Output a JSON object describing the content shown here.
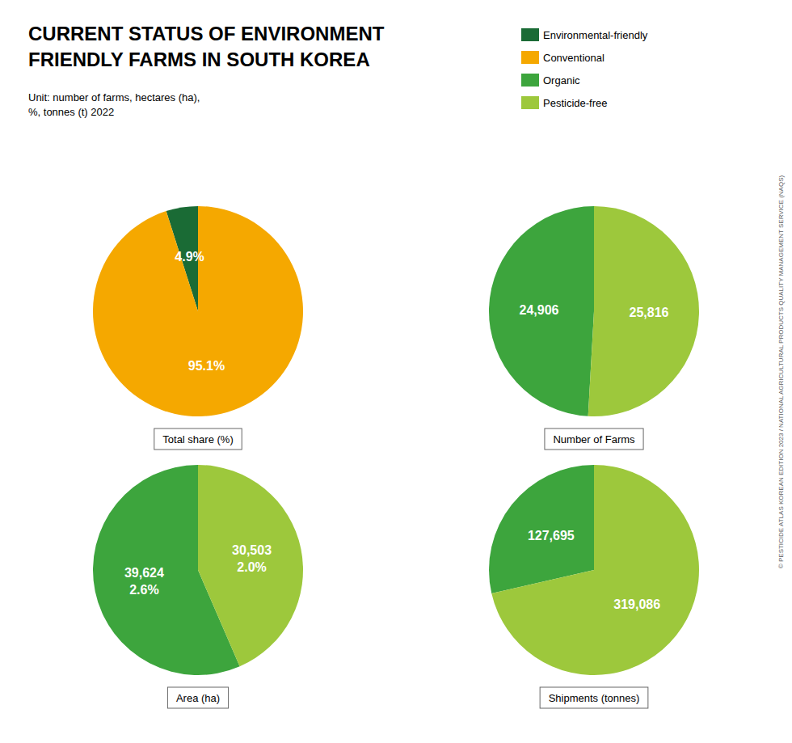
{
  "title": "CURRENT STATUS OF ENVIRONMENT\nFRIENDLY FARMS IN SOUTH KOREA",
  "subtitle": "Unit: number of farms, hectares (ha),\n%, tonnes (t) 2022",
  "legend": "upper right",
  "annotations": [
    "© PESTICIDE ATLAS KOREAN EDITION 2023 / NATIONAL AGRICULTURAL PRODUCTS QUALITY MANAGEMENT SERVICE (NAQS)"
  ],
  "chart_data": [
    {
      "type": "pie",
      "title": "Total share (%)",
      "categories": [
        "Environmental-friendly",
        "Conventional"
      ],
      "values": [
        4.9,
        95.1
      ],
      "value_labels": [
        "4.9%",
        "95.1%"
      ],
      "colors": [
        "#1a6b35",
        "#f5a800"
      ],
      "data_labels": true
    },
    {
      "type": "pie",
      "title": "Number of Farms",
      "categories": [
        "Organic",
        "Pesticide-free"
      ],
      "values": [
        24906,
        25816
      ],
      "value_labels": [
        "24,906",
        "25,816"
      ],
      "colors": [
        "#3da53d",
        "#9dc83c"
      ],
      "data_labels": true
    },
    {
      "type": "pie",
      "title": "Area (ha)",
      "categories": [
        "Organic",
        "Pesticide-free"
      ],
      "values": [
        39624,
        30503
      ],
      "value_labels": [
        "39,624\n2.6%",
        "30,503\n2.0%"
      ],
      "colors": [
        "#3da53d",
        "#9dc83c"
      ],
      "data_labels": true
    },
    {
      "type": "pie",
      "title": "Shipments (tonnes)",
      "categories": [
        "Organic",
        "Pesticide-free"
      ],
      "values": [
        127695,
        319086
      ],
      "value_labels": [
        "127,695",
        "319,086"
      ],
      "colors": [
        "#3da53d",
        "#9dc83c"
      ],
      "data_labels": true
    }
  ]
}
